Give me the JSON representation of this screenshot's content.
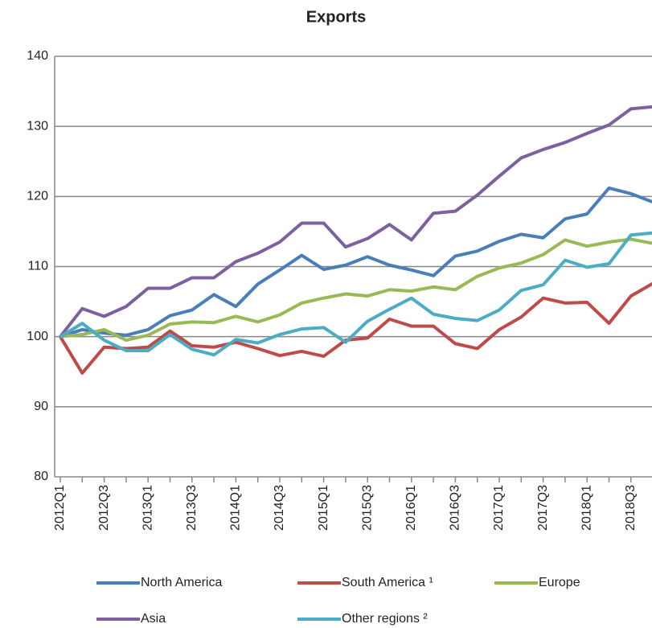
{
  "chart_data": {
    "type": "line",
    "title": "Exports",
    "categories": [
      "2012Q1",
      null,
      "2012Q3",
      null,
      "2013Q1",
      null,
      "2013Q3",
      null,
      "2014Q1",
      null,
      "2014Q3",
      null,
      "2015Q1",
      null,
      "2015Q3",
      null,
      "2016Q1",
      null,
      "2016Q3",
      null,
      "2017Q1",
      null,
      "2017Q3",
      null,
      "2018Q1",
      null,
      "2018Q3",
      null
    ],
    "series": [
      {
        "name": "North America",
        "color": "#4a7ebb",
        "values": [
          100,
          101,
          100.5,
          100.2,
          101,
          103,
          103.8,
          106,
          104.3,
          107.5,
          109.5,
          111.6,
          109.6,
          110.2,
          111.4,
          110.2,
          109.5,
          108.7,
          111.5,
          112.2,
          113.6,
          114.6,
          114.1,
          116.8,
          117.5,
          121.2,
          120.4,
          119.2
        ]
      },
      {
        "name": "South America ¹",
        "color": "#be4b48",
        "values": [
          100,
          94.8,
          98.5,
          98.3,
          98.5,
          100.8,
          98.7,
          98.5,
          99.2,
          98.3,
          97.3,
          97.9,
          97.2,
          99.5,
          99.8,
          102.5,
          101.5,
          101.5,
          99,
          98.3,
          101,
          102.8,
          105.5,
          104.8,
          104.9,
          101.9,
          105.8,
          107.6
        ]
      },
      {
        "name": "Europe",
        "color": "#98b954",
        "values": [
          100,
          100.3,
          101,
          99.5,
          100.2,
          101.8,
          102.1,
          102,
          102.9,
          102.1,
          103.1,
          104.8,
          105.5,
          106.1,
          105.8,
          106.7,
          106.5,
          107.1,
          106.7,
          108.6,
          109.8,
          110.5,
          111.7,
          113.8,
          112.9,
          113.5,
          113.9,
          113.3
        ]
      },
      {
        "name": "Asia",
        "color": "#7d60a0",
        "values": [
          100,
          104,
          102.9,
          104.3,
          106.9,
          106.9,
          108.4,
          108.4,
          110.7,
          111.9,
          113.5,
          116.2,
          116.2,
          112.8,
          114,
          116,
          113.8,
          117.6,
          117.9,
          120.2,
          122.9,
          125.5,
          126.7,
          127.7,
          129,
          130.2,
          132.5,
          132.8
        ]
      },
      {
        "name": "Other regions ²",
        "color": "#4bacc6",
        "values": [
          100,
          101.9,
          99.5,
          98,
          98,
          100.3,
          98.2,
          97.4,
          99.6,
          99.1,
          100.3,
          101.1,
          101.3,
          99.2,
          102.2,
          103.9,
          105.5,
          103.2,
          102.6,
          102.3,
          103.8,
          106.6,
          107.4,
          110.9,
          109.9,
          110.4,
          114.5,
          114.8
        ]
      }
    ],
    "ylim": [
      80,
      140
    ],
    "yticks": [
      80,
      90,
      100,
      110,
      120,
      130,
      140
    ],
    "grid": true
  }
}
